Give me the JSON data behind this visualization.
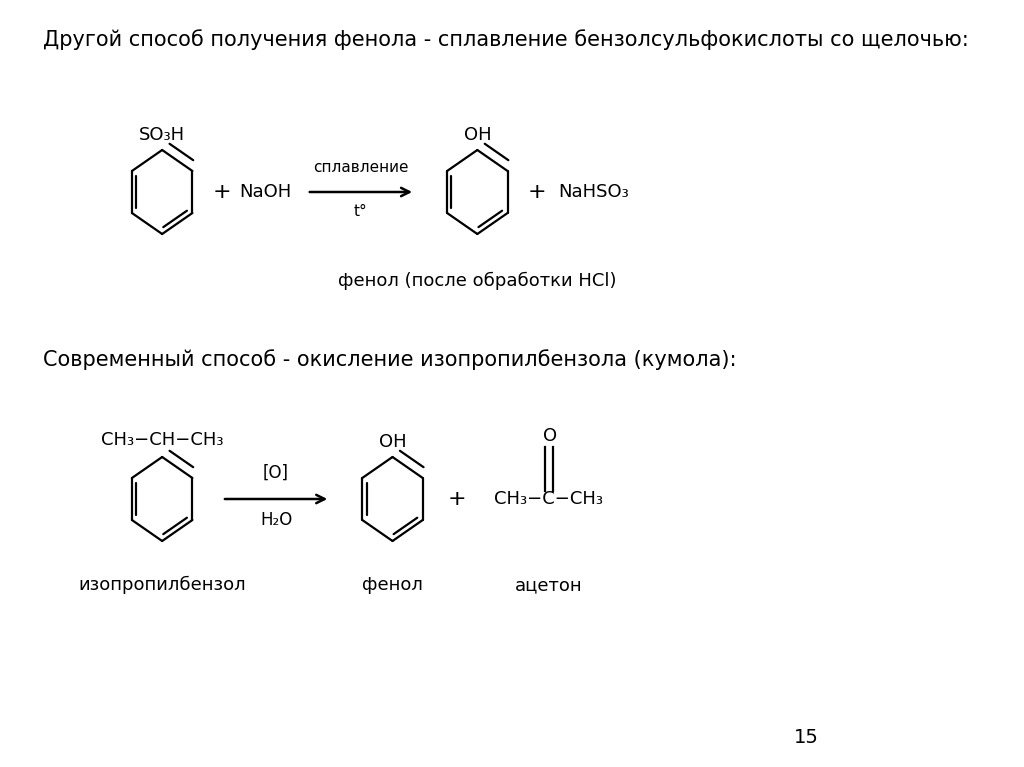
{
  "bg_color": "#ffffff",
  "title1": "Другой способ получения фенола - сплавление бензолсульфокислоты со щелочью:",
  "title2": "Современный способ - окисление изопропилбензола (кумола):",
  "label_phenol1": "фенол (после обработки HCl)",
  "label_isopropyl": "изопропилбензол",
  "label_phenol2": "фенол",
  "label_acetone": "ацетон",
  "page_num": "15",
  "arrow1_label_top": "сплавление",
  "arrow1_label_bot": "t°",
  "arrow2_label_top": "[O]",
  "arrow2_label_bot": "H₂O",
  "font_size_title": 15,
  "font_size_label": 13,
  "font_size_chem": 13
}
